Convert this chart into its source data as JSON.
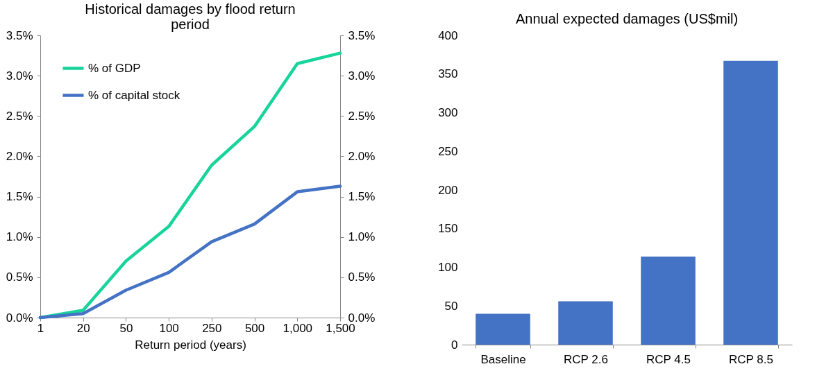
{
  "chart_data": [
    {
      "type": "line",
      "title": "Historical damages by flood return period",
      "xlabel": "Return period (years)",
      "categories": [
        "1",
        "20",
        "50",
        "100",
        "250",
        "500",
        "1,000",
        "1,500"
      ],
      "series": [
        {
          "name": "% of GDP",
          "color": "#18d49b",
          "values": [
            0,
            0.09,
            0.7,
            1.13,
            1.89,
            2.37,
            3.15,
            3.28
          ]
        },
        {
          "name": "% of capital stock",
          "color": "#4472c4",
          "values": [
            0,
            0.05,
            0.34,
            0.56,
            0.94,
            1.16,
            1.56,
            1.63
          ]
        }
      ],
      "ylim": [
        0,
        3.5
      ],
      "yticks": [
        {
          "value": 0,
          "label": "0.0%"
        },
        {
          "value": 0.5,
          "label": "0.5%"
        },
        {
          "value": 1,
          "label": "1.0%"
        },
        {
          "value": 1.5,
          "label": "1.5%"
        },
        {
          "value": 2,
          "label": "2.0%"
        },
        {
          "value": 2.5,
          "label": "2.5%"
        },
        {
          "value": 3,
          "label": "3.0%"
        },
        {
          "value": 3.5,
          "label": "3.5%"
        }
      ],
      "y2lim": [
        0,
        3.5
      ],
      "y2ticks": [
        {
          "value": 0,
          "label": "0.0%"
        },
        {
          "value": 0.5,
          "label": "0.5%"
        },
        {
          "value": 1,
          "label": "1.0%"
        },
        {
          "value": 1.5,
          "label": "1.5%"
        },
        {
          "value": 2,
          "label": "2.0%"
        },
        {
          "value": 2.5,
          "label": "2.5%"
        },
        {
          "value": 3,
          "label": "3.0%"
        },
        {
          "value": 3.5,
          "label": "3.5%"
        }
      ],
      "legend": "top left"
    },
    {
      "type": "bar",
      "title": "Annual expected damages (US$mil)",
      "categories": [
        "Baseline",
        "RCP 2.6",
        "RCP 4.5",
        "RCP 8.5"
      ],
      "values": [
        40,
        56,
        114,
        367
      ],
      "color": "#4472c4",
      "ylim": [
        0,
        400
      ],
      "yticks": [
        0,
        50,
        100,
        150,
        200,
        250,
        300,
        350,
        400
      ]
    }
  ]
}
